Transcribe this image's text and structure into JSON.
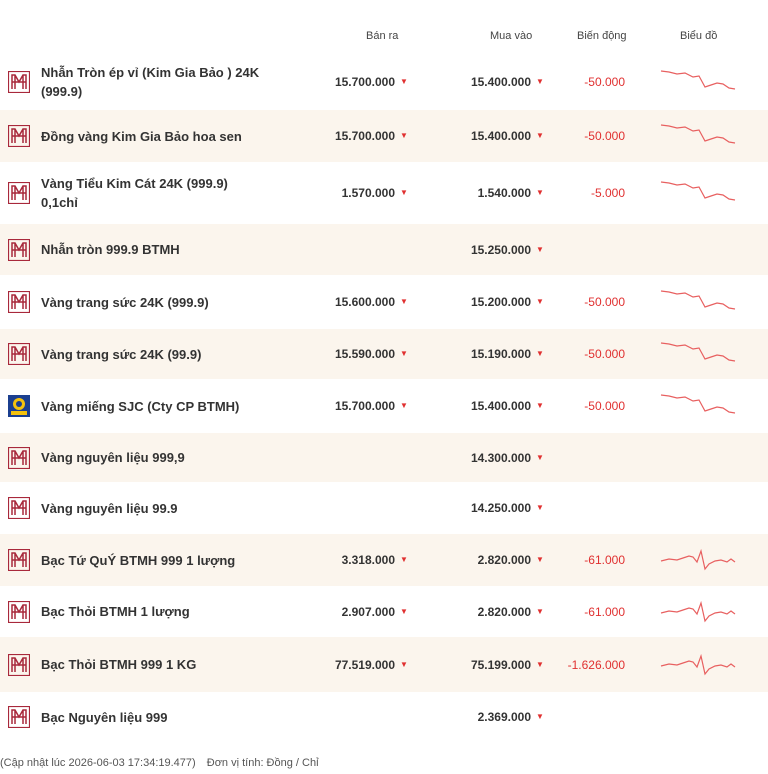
{
  "header": {
    "sell_label": "Bán ra",
    "buy_label": "Mua vào",
    "change_label": "Biến động",
    "chart_label": "Biểu đồ"
  },
  "colors": {
    "brand": "#a8283b",
    "down": "#e03030",
    "alt_row": "#fbf5ed"
  },
  "rows": [
    {
      "logo": "btmh-logo-icon",
      "name_line1": "Nhẫn Tròn ép vỉ (Kim Gia Bảo ) 24K",
      "name_line2": "(999.9)",
      "sell": "15.700.000",
      "buy": "15.400.000",
      "change": "-50.000",
      "spark": "gold",
      "alt": false
    },
    {
      "logo": "btmh-logo-icon",
      "name_line1": "Đồng vàng Kim Gia Bảo hoa sen",
      "name_line2": "",
      "sell": "15.700.000",
      "buy": "15.400.000",
      "change": "-50.000",
      "spark": "gold",
      "alt": true
    },
    {
      "logo": "btmh-logo-icon",
      "name_line1": "Vàng Tiểu Kim Cát 24K (999.9)",
      "name_line2": "0,1chỉ",
      "sell": "1.570.000",
      "buy": "1.540.000",
      "change": "-5.000",
      "spark": "gold",
      "alt": false
    },
    {
      "logo": "btmh-logo-icon",
      "name_line1": "Nhẫn tròn 999.9 BTMH",
      "name_line2": "",
      "sell": "",
      "buy": "15.250.000",
      "change": "",
      "spark": "",
      "alt": true
    },
    {
      "logo": "btmh-logo-icon",
      "name_line1": "Vàng trang sức 24K (999.9)",
      "name_line2": "",
      "sell": "15.600.000",
      "buy": "15.200.000",
      "change": "-50.000",
      "spark": "gold",
      "alt": false
    },
    {
      "logo": "btmh-logo-icon",
      "name_line1": "Vàng trang sức 24K (99.9)",
      "name_line2": "",
      "sell": "15.590.000",
      "buy": "15.190.000",
      "change": "-50.000",
      "spark": "gold",
      "alt": true
    },
    {
      "logo": "sjc-logo-icon",
      "name_line1": "Vàng miếng SJC (Cty CP BTMH)",
      "name_line2": "",
      "sell": "15.700.000",
      "buy": "15.400.000",
      "change": "-50.000",
      "spark": "gold",
      "alt": false
    },
    {
      "logo": "btmh-logo-icon",
      "name_line1": "Vàng nguyên liệu 999,9",
      "name_line2": "",
      "sell": "",
      "buy": "14.300.000",
      "change": "",
      "spark": "",
      "alt": true
    },
    {
      "logo": "btmh-logo-icon",
      "name_line1": "Vàng nguyên liệu 99.9",
      "name_line2": "",
      "sell": "",
      "buy": "14.250.000",
      "change": "",
      "spark": "",
      "alt": false
    },
    {
      "logo": "btmh-logo-icon",
      "name_line1": "Bạc Tứ QuÝ BTMH 999 1 lượng",
      "name_line2": "",
      "sell": "3.318.000",
      "buy": "2.820.000",
      "change": "-61.000",
      "spark": "silver",
      "alt": true
    },
    {
      "logo": "btmh-logo-icon",
      "name_line1": "Bạc Thỏi BTMH 1 lượng",
      "name_line2": "",
      "sell": "2.907.000",
      "buy": "2.820.000",
      "change": "-61.000",
      "spark": "silver",
      "alt": false
    },
    {
      "logo": "btmh-logo-icon",
      "name_line1": "Bạc Thỏi BTMH 999 1 KG",
      "name_line2": "",
      "sell": "77.519.000",
      "buy": "75.199.000",
      "change": "-1.626.000",
      "spark": "silver",
      "alt": true
    },
    {
      "logo": "btmh-logo-icon",
      "name_line1": "Bạc Nguyên liệu 999",
      "name_line2": "",
      "sell": "",
      "buy": "2.369.000",
      "change": "",
      "spark": "",
      "alt": false
    }
  ],
  "footer": {
    "updated": "(Cập nhật lúc 2026-06-03 17:34:19.477)",
    "unit": "Đơn vị tính: Đồng / Chỉ"
  }
}
